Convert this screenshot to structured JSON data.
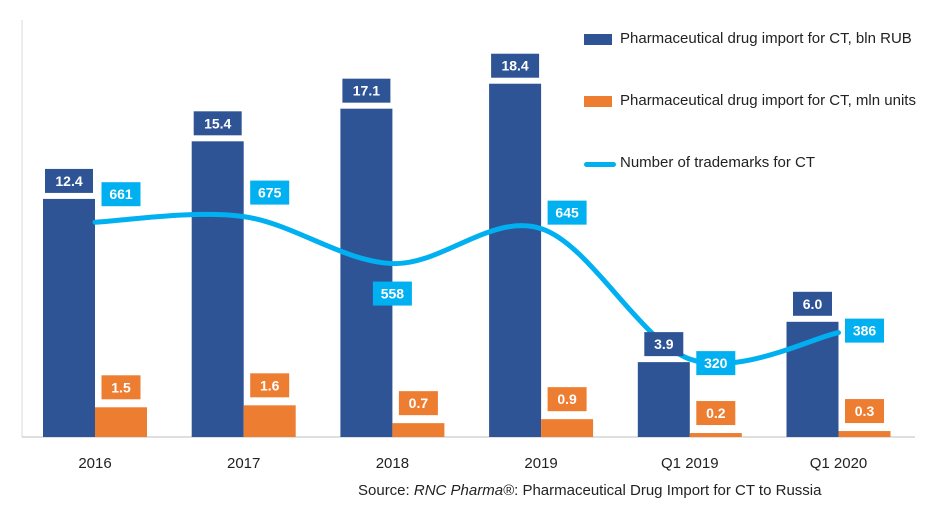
{
  "chart_data": {
    "type": "bar",
    "categories": [
      "2016",
      "2017",
      "2018",
      "2019",
      "Q1 2019",
      "Q1 2020"
    ],
    "series": [
      {
        "name": "Pharmaceutical drug import for CT, bln RUB",
        "kind": "bar",
        "color": "#2f5496",
        "values": [
          12.4,
          15.4,
          17.1,
          18.4,
          3.9,
          6.0
        ],
        "labels": [
          "12.4",
          "15.4",
          "17.1",
          "18.4",
          "3.9",
          "6.0"
        ]
      },
      {
        "name": "Pharmaceutical drug import for CT, mln units",
        "kind": "bar",
        "color": "#ed7d31",
        "values": [
          1.5,
          1.6,
          0.7,
          0.9,
          0.2,
          0.3
        ],
        "labels": [
          "1.5",
          "1.6",
          "0.7",
          "0.9",
          "0.2",
          "0.3"
        ]
      },
      {
        "name": "Number of trademarks for CT",
        "kind": "line",
        "color": "#00b0f0",
        "values": [
          661,
          675,
          558,
          645,
          320,
          386
        ],
        "labels": [
          "661",
          "675",
          "558",
          "645",
          "320",
          "386"
        ]
      }
    ],
    "legend_position": "top-right",
    "grid": false
  },
  "source": {
    "prefix": "Source: ",
    "brand": "RNC Pharma®",
    "suffix": ": Pharmaceutical Drug Import for CT to Russia"
  }
}
